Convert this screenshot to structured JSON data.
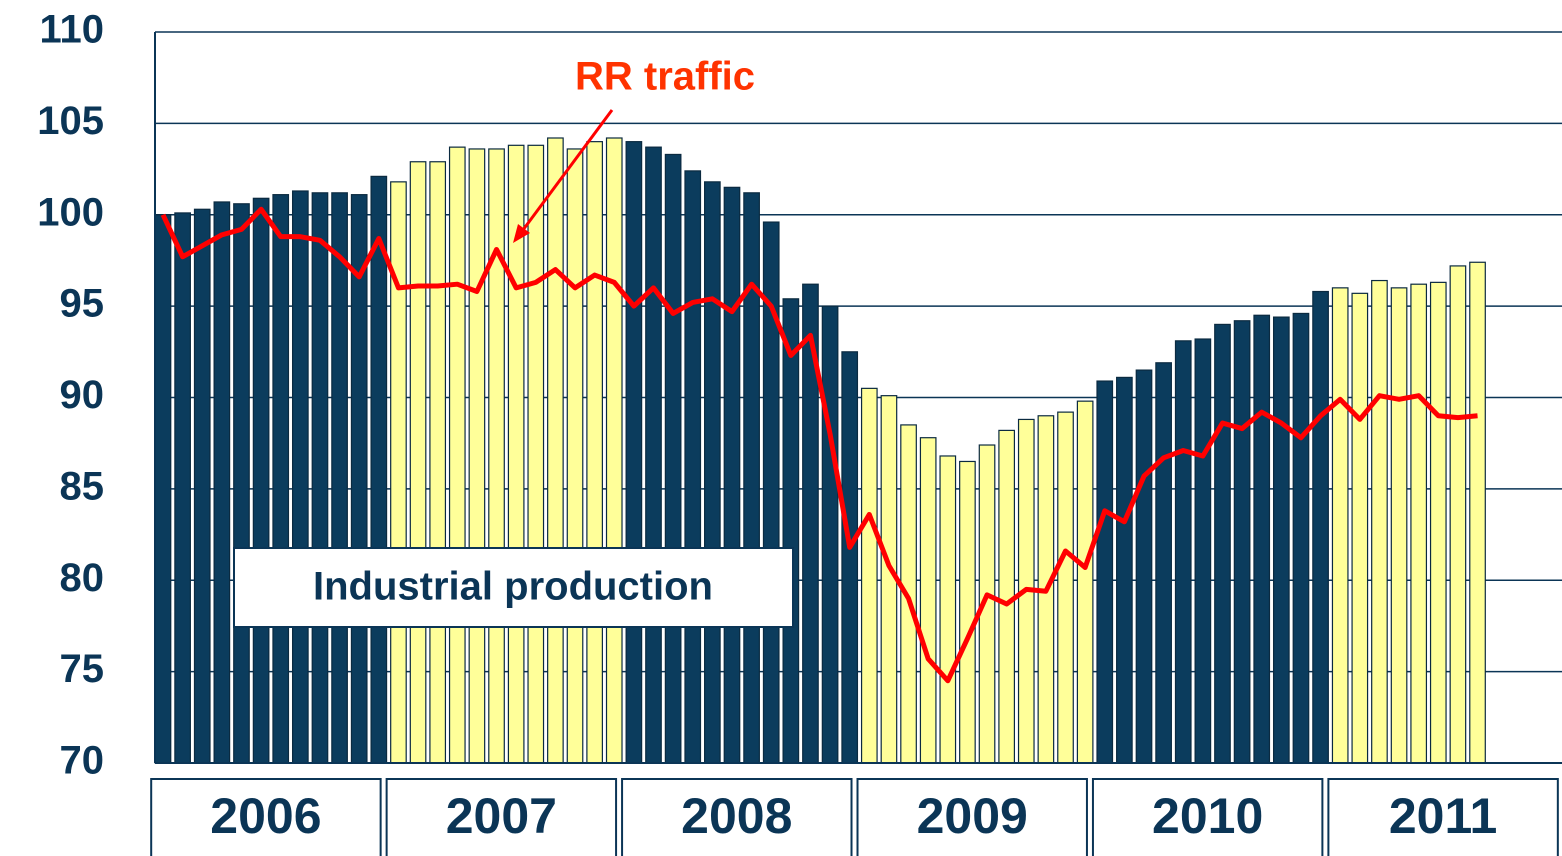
{
  "chart_data": {
    "type": "bar_line",
    "categories": [
      null,
      null,
      null,
      null,
      null,
      null,
      null,
      null,
      null,
      null,
      null,
      null,
      null,
      null,
      null,
      null,
      null,
      null,
      null,
      null,
      null,
      null,
      null,
      null,
      null,
      null,
      null,
      null,
      null,
      null,
      null,
      null,
      null,
      null,
      null,
      null,
      null,
      null,
      null,
      null,
      null,
      null,
      null,
      null,
      null,
      null,
      null,
      null,
      null,
      null,
      null,
      null,
      null,
      null,
      null,
      null,
      null,
      null,
      null,
      null,
      null,
      null,
      null,
      null,
      null,
      null,
      null,
      null
    ],
    "year_labels": [
      "2006",
      "2007",
      "2008",
      "2009",
      "2010",
      "2011"
    ],
    "series": [
      {
        "name": "Industrial production",
        "kind": "bar",
        "colors": [
          "#0b3c5d",
          "#ffff99"
        ],
        "values": [
          100.0,
          100.1,
          100.3,
          100.7,
          100.6,
          100.9,
          101.1,
          101.3,
          101.2,
          101.2,
          101.1,
          102.1,
          101.8,
          102.9,
          102.9,
          103.7,
          103.6,
          103.6,
          103.8,
          103.8,
          104.2,
          103.6,
          104.0,
          104.2,
          104.0,
          103.7,
          103.3,
          102.4,
          101.8,
          101.5,
          101.2,
          99.6,
          95.4,
          96.2,
          95.0,
          92.5,
          90.5,
          90.1,
          88.5,
          87.8,
          86.8,
          86.5,
          87.4,
          88.2,
          88.8,
          89.0,
          89.2,
          89.8,
          90.9,
          91.1,
          91.5,
          91.9,
          93.1,
          93.2,
          94.0,
          94.2,
          94.5,
          94.4,
          94.6,
          95.8,
          96.0,
          95.7,
          96.4,
          96.0,
          96.2,
          96.3,
          97.2,
          97.4
        ]
      },
      {
        "name": "RR traffic",
        "kind": "line",
        "color": "#ff0000",
        "values": [
          100.0,
          97.7,
          98.3,
          98.9,
          99.2,
          100.3,
          98.8,
          98.8,
          98.6,
          97.7,
          96.6,
          98.7,
          96.0,
          96.1,
          96.1,
          96.2,
          95.8,
          98.1,
          96.0,
          96.3,
          97.0,
          96.0,
          96.7,
          96.3,
          95.0,
          96.0,
          94.6,
          95.2,
          95.4,
          94.7,
          96.2,
          95.0,
          92.3,
          93.4,
          88.0,
          81.8,
          83.6,
          80.8,
          79.0,
          75.7,
          74.5,
          76.8,
          79.2,
          78.7,
          79.5,
          79.4,
          81.6,
          80.7,
          83.8,
          83.2,
          85.7,
          86.7,
          87.1,
          86.8,
          88.6,
          88.3,
          89.2,
          88.6,
          87.8,
          89.0,
          89.9,
          88.8,
          90.1,
          89.9,
          90.1,
          89.0,
          88.9,
          89.0
        ]
      }
    ],
    "ylim": [
      70,
      110
    ],
    "yticks": [
      70,
      75,
      80,
      85,
      90,
      95,
      100,
      105,
      110
    ],
    "grid": true
  }
}
